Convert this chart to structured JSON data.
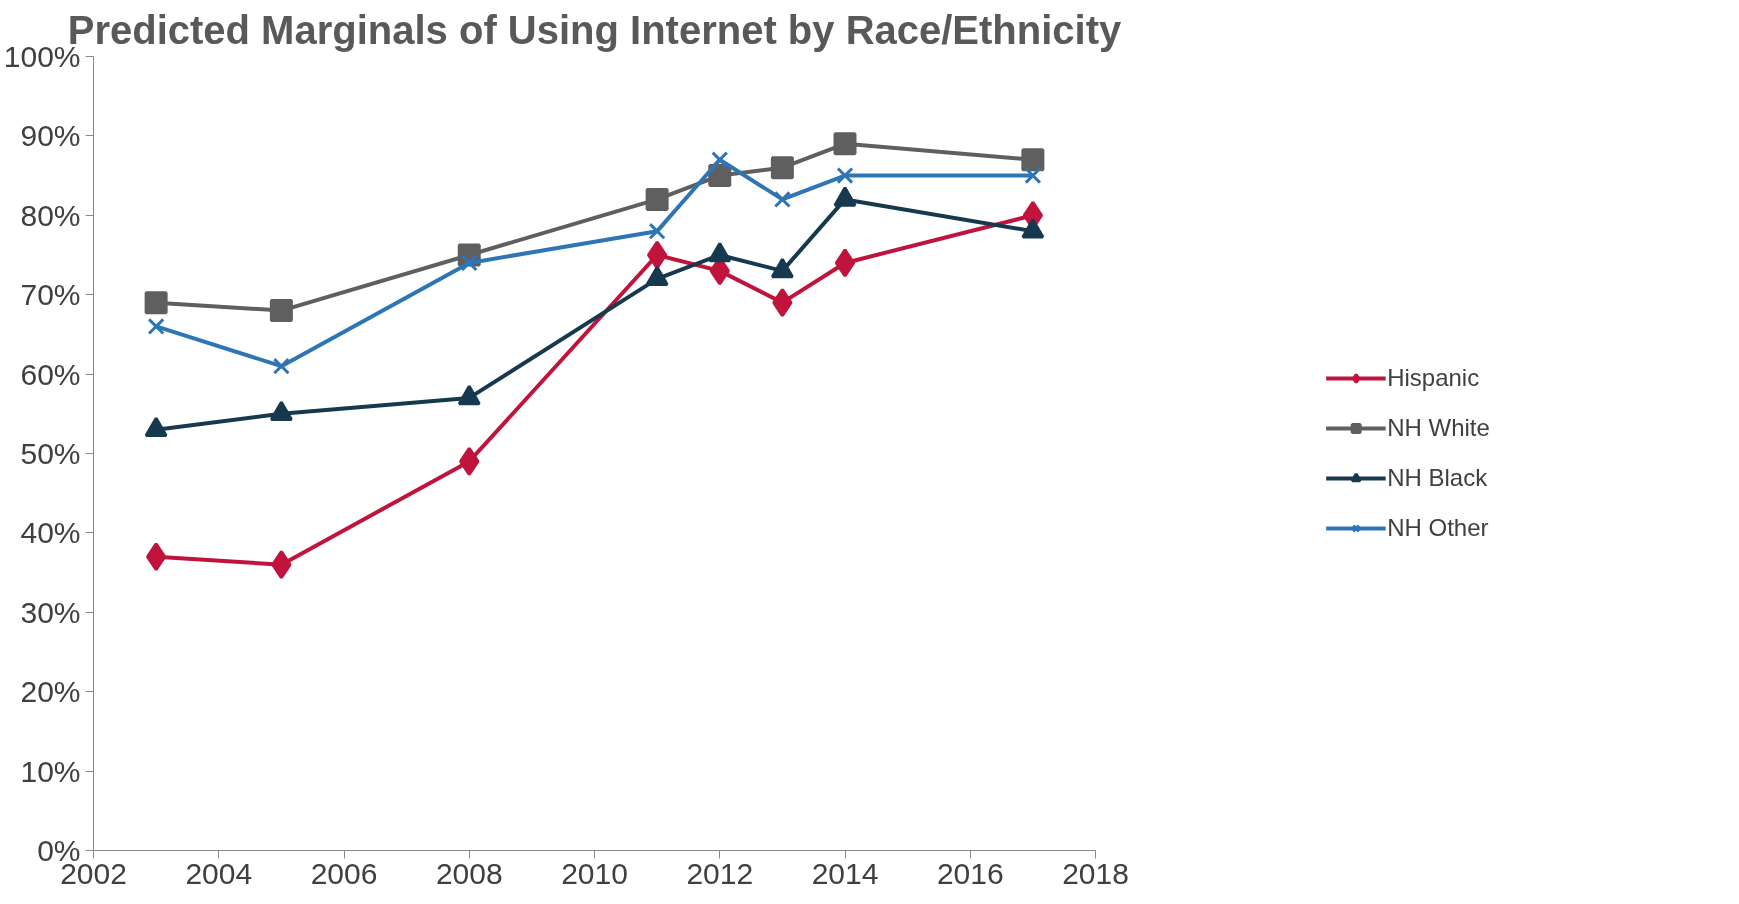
{
  "chart_data": {
    "type": "line",
    "title": "Predicted Marginals of Using Internet by Race/Ethnicity",
    "x": [
      2003,
      2005,
      2008,
      2011,
      2012,
      2013,
      2014,
      2017
    ],
    "series": [
      {
        "name": "Hispanic",
        "color": "#c0143c",
        "marker": "diamond",
        "values": [
          37,
          36,
          49,
          75,
          73,
          69,
          74,
          80
        ]
      },
      {
        "name": "NH White",
        "color": "#5f5f5f",
        "marker": "square",
        "values": [
          69,
          68,
          75,
          82,
          85,
          86,
          89,
          87
        ]
      },
      {
        "name": "NH Black",
        "color": "#17394f",
        "marker": "triangle",
        "values": [
          53,
          55,
          57,
          72,
          75,
          73,
          82,
          78
        ]
      },
      {
        "name": "NH Other",
        "color": "#2e75b6",
        "marker": "cross",
        "values": [
          66,
          61,
          74,
          78,
          87,
          82,
          85,
          85
        ]
      }
    ],
    "xlim": [
      2002,
      2018
    ],
    "xticks": [
      2002,
      2004,
      2006,
      2008,
      2010,
      2012,
      2014,
      2016,
      2018
    ],
    "ylim": [
      0,
      100
    ],
    "yticks": [
      {
        "value": 0,
        "label": "0%"
      },
      {
        "value": 10,
        "label": "10%"
      },
      {
        "value": 20,
        "label": "20%"
      },
      {
        "value": 30,
        "label": "30%"
      },
      {
        "value": 40,
        "label": "40%"
      },
      {
        "value": 50,
        "label": "50%"
      },
      {
        "value": 60,
        "label": "60%"
      },
      {
        "value": 70,
        "label": "70%"
      },
      {
        "value": 80,
        "label": "80%"
      },
      {
        "value": 90,
        "label": "90%"
      },
      {
        "value": 100,
        "label": "100%"
      }
    ],
    "grid": false,
    "legend": "right",
    "line_style": "solid"
  }
}
